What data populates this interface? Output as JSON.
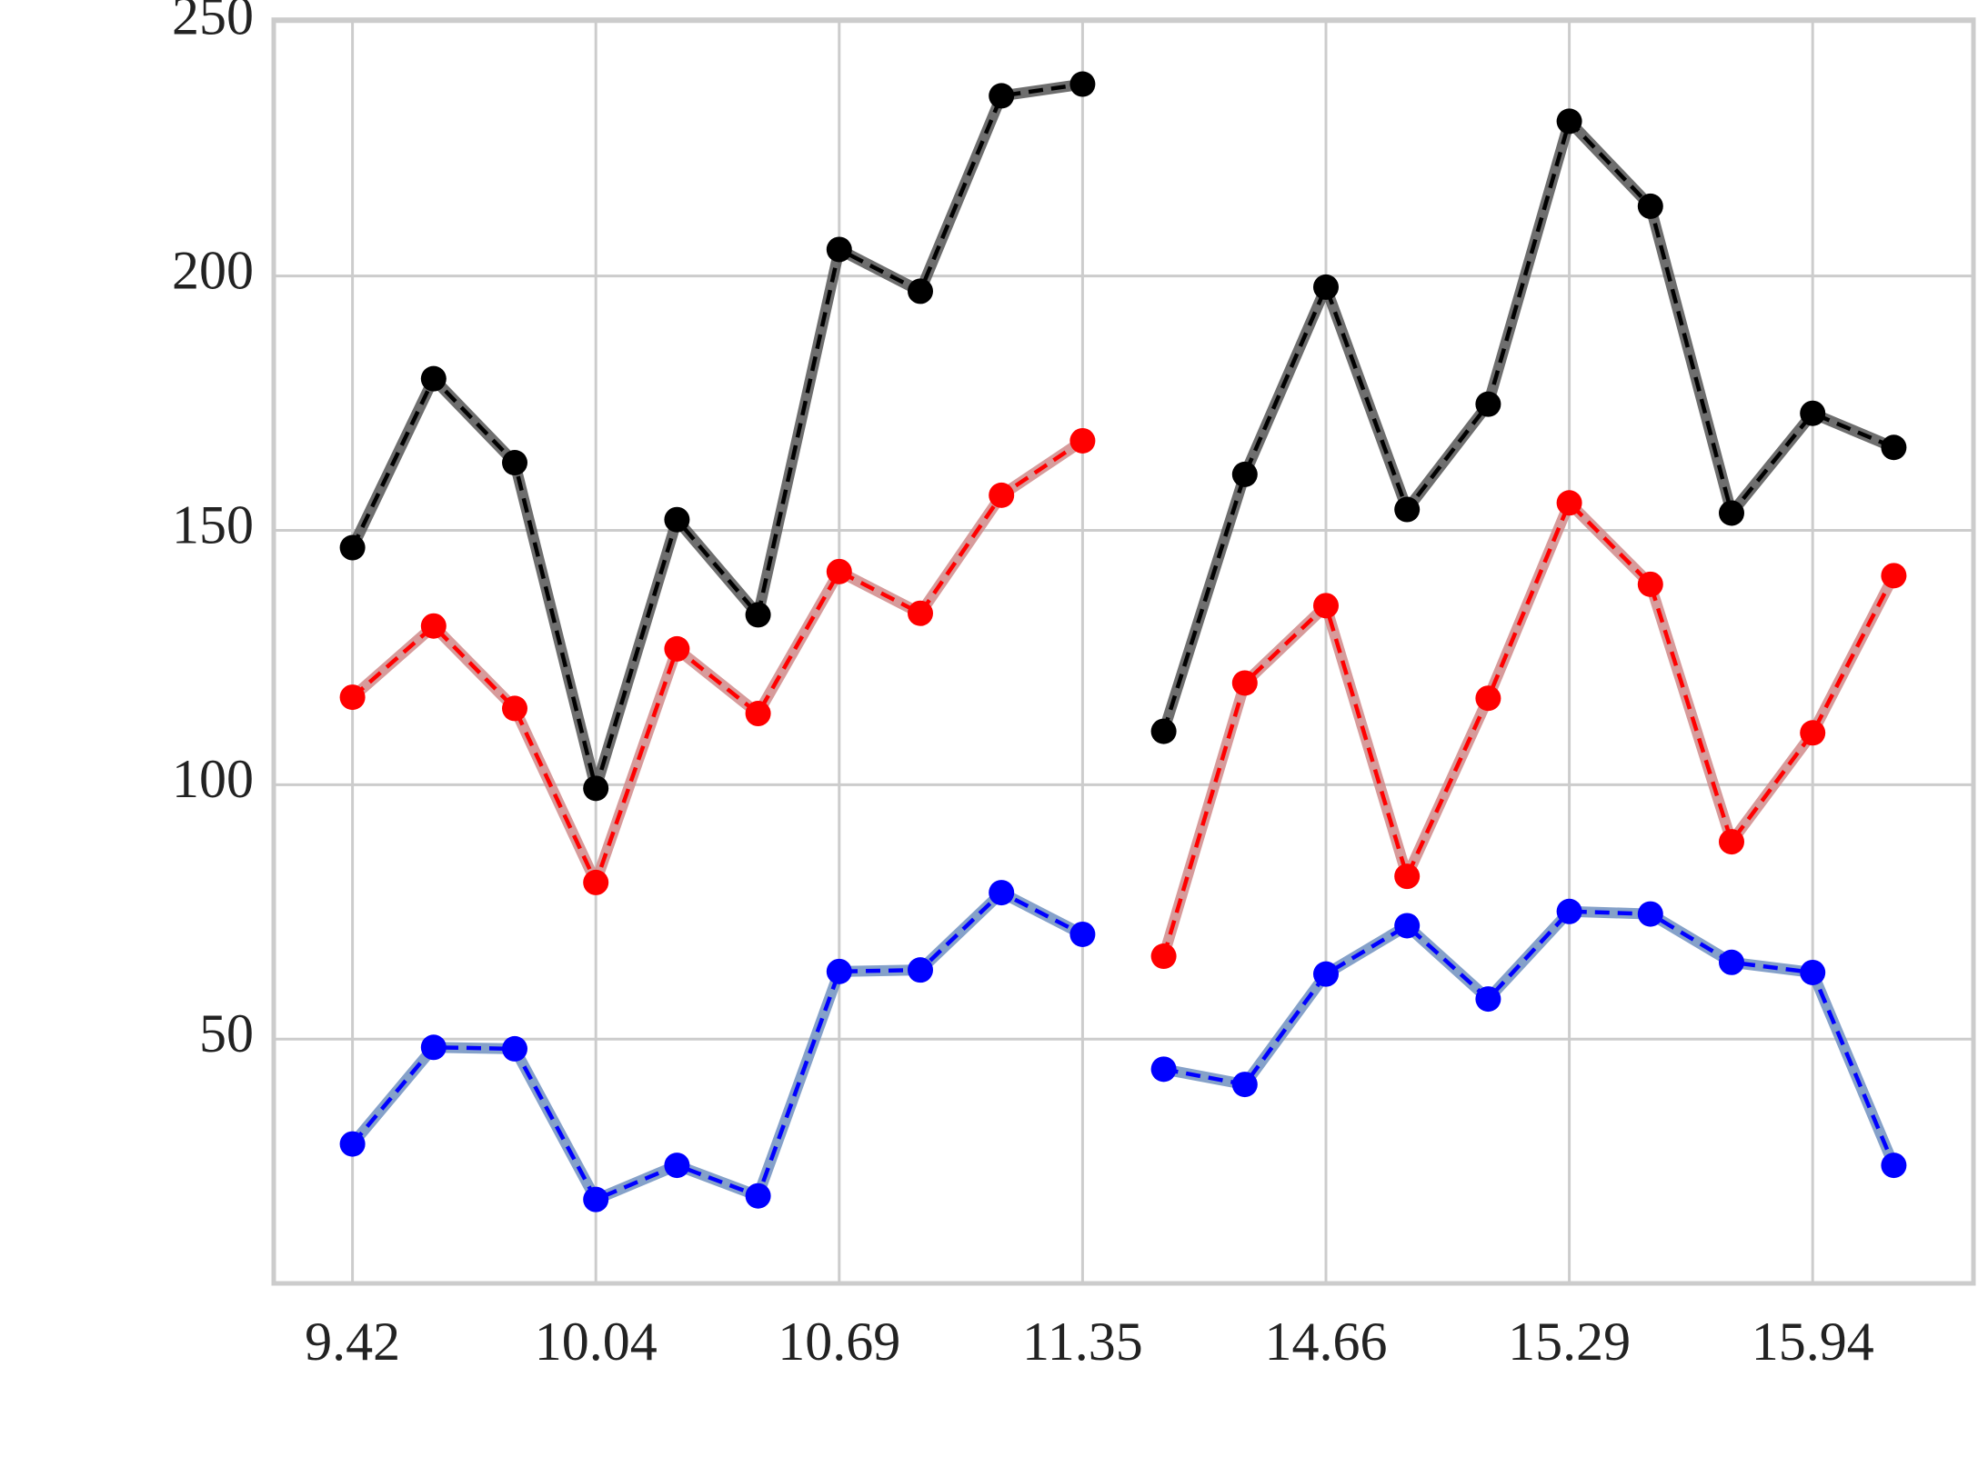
{
  "chart_data": {
    "type": "line",
    "categories": [
      "9.42",
      null,
      null,
      "10.04",
      null,
      null,
      "10.69",
      null,
      null,
      "11.35",
      null,
      null,
      "14.66",
      null,
      null,
      "15.29",
      null,
      null,
      "15.94",
      null
    ],
    "series": [
      {
        "color": "#000000",
        "band_color": "#555555",
        "values": [
          146.6,
          179.8,
          163.3,
          99.3,
          152.1,
          133.4,
          205.2,
          197,
          235.4,
          237.7,
          null,
          null,
          null,
          null,
          null,
          null,
          null,
          null,
          null,
          null
        ]
      },
      {
        "color": "#000000",
        "band_color": "#555555",
        "values": [
          null,
          null,
          null,
          null,
          null,
          null,
          null,
          null,
          null,
          null,
          110.5,
          161,
          197.8,
          154.1,
          174.8,
          230.4,
          213.7,
          153.4,
          173,
          166.3
        ]
      },
      {
        "color": "#ff0000",
        "band_color": "#d08a8a",
        "values": [
          117.2,
          131.2,
          115,
          80.8,
          126.7,
          114,
          141.9,
          133.7,
          156.9,
          167.6,
          null,
          null,
          null,
          null,
          null,
          null,
          null,
          null,
          null,
          null
        ]
      },
      {
        "color": "#ff0000",
        "band_color": "#d08a8a",
        "values": [
          null,
          null,
          null,
          null,
          null,
          null,
          null,
          null,
          null,
          null,
          66.3,
          120,
          135.2,
          82,
          117,
          155.4,
          139.4,
          88.8,
          110.2,
          141.1
        ]
      },
      {
        "color": "#0000ff",
        "band_color": "#7090c0",
        "values": [
          29.4,
          48.4,
          48.1,
          18.5,
          25.2,
          19.2,
          63.3,
          63.6,
          78.8,
          70.6,
          null,
          null,
          null,
          null,
          null,
          null,
          null,
          null,
          null,
          null
        ]
      },
      {
        "color": "#0000ff",
        "band_color": "#7090c0",
        "values": [
          null,
          null,
          null,
          null,
          null,
          null,
          null,
          null,
          null,
          null,
          44.1,
          41.1,
          62.8,
          72.3,
          57.9,
          75.1,
          74.6,
          65.1,
          63.1,
          25.2
        ]
      }
    ],
    "ylim": [
      2,
      250
    ],
    "yticks": [
      50,
      100,
      150,
      200,
      250
    ],
    "grid": true
  }
}
